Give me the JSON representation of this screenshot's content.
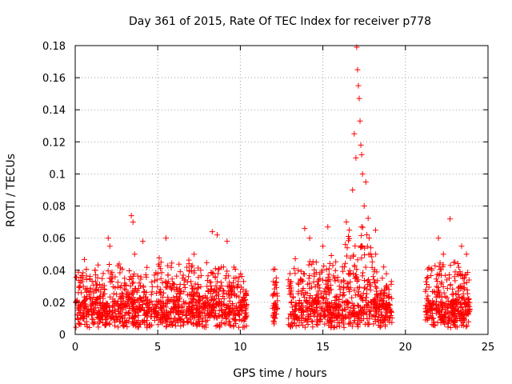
{
  "chart_data": {
    "type": "scatter",
    "title": "Day 361 of 2015, Rate Of TEC Index for receiver p778",
    "xlabel": "GPS time / hours",
    "ylabel": "ROTI / TECUs",
    "xlim": [
      0,
      25
    ],
    "ylim": [
      0,
      0.18
    ],
    "x_ticks": [
      "0",
      "5",
      "10",
      "15",
      "20",
      "25"
    ],
    "y_ticks": [
      "0",
      "0.02",
      "0.04",
      "0.06",
      "0.08",
      "0.1",
      "0.12",
      "0.14",
      "0.16",
      "0.18"
    ],
    "grid": true,
    "marker": "+",
    "color": "#ff0000",
    "data_gaps_hours": [
      [
        10.4,
        11.9
      ],
      [
        12.4,
        12.9
      ],
      [
        19.2,
        21.2
      ]
    ],
    "series": [
      {
        "name": "ROTI",
        "points": [
          [
            0.2,
            0.015
          ],
          [
            0.5,
            0.03
          ],
          [
            0.9,
            0.022
          ],
          [
            1.2,
            0.04
          ],
          [
            1.6,
            0.018
          ],
          [
            2.0,
            0.06
          ],
          [
            2.1,
            0.055
          ],
          [
            2.5,
            0.025
          ],
          [
            3.0,
            0.032
          ],
          [
            3.4,
            0.074
          ],
          [
            3.5,
            0.07
          ],
          [
            3.6,
            0.05
          ],
          [
            4.1,
            0.058
          ],
          [
            4.5,
            0.02
          ],
          [
            5.2,
            0.045
          ],
          [
            5.5,
            0.06
          ],
          [
            6.0,
            0.028
          ],
          [
            6.5,
            0.035
          ],
          [
            7.2,
            0.05
          ],
          [
            7.6,
            0.04
          ],
          [
            8.3,
            0.064
          ],
          [
            8.6,
            0.062
          ],
          [
            9.2,
            0.058
          ],
          [
            9.8,
            0.03
          ],
          [
            10.2,
            0.033
          ],
          [
            12.0,
            0.033
          ],
          [
            12.1,
            0.01
          ],
          [
            13.0,
            0.025
          ],
          [
            13.5,
            0.04
          ],
          [
            13.9,
            0.066
          ],
          [
            14.2,
            0.06
          ],
          [
            14.6,
            0.045
          ],
          [
            15.0,
            0.055
          ],
          [
            15.3,
            0.067
          ],
          [
            15.7,
            0.035
          ],
          [
            16.0,
            0.03
          ],
          [
            16.3,
            0.042
          ],
          [
            16.6,
            0.065
          ],
          [
            16.8,
            0.09
          ],
          [
            16.9,
            0.125
          ],
          [
            17.0,
            0.11
          ],
          [
            17.05,
            0.179
          ],
          [
            17.1,
            0.165
          ],
          [
            17.15,
            0.155
          ],
          [
            17.2,
            0.147
          ],
          [
            17.25,
            0.133
          ],
          [
            17.3,
            0.118
          ],
          [
            17.35,
            0.112
          ],
          [
            17.4,
            0.1
          ],
          [
            17.5,
            0.08
          ],
          [
            17.6,
            0.095
          ],
          [
            17.8,
            0.06
          ],
          [
            18.2,
            0.05
          ],
          [
            18.6,
            0.035
          ],
          [
            19.0,
            0.028
          ],
          [
            21.3,
            0.035
          ],
          [
            21.6,
            0.04
          ],
          [
            22.0,
            0.06
          ],
          [
            22.3,
            0.05
          ],
          [
            22.7,
            0.072
          ],
          [
            23.0,
            0.045
          ],
          [
            23.4,
            0.055
          ],
          [
            23.7,
            0.05
          ]
        ]
      }
    ]
  }
}
